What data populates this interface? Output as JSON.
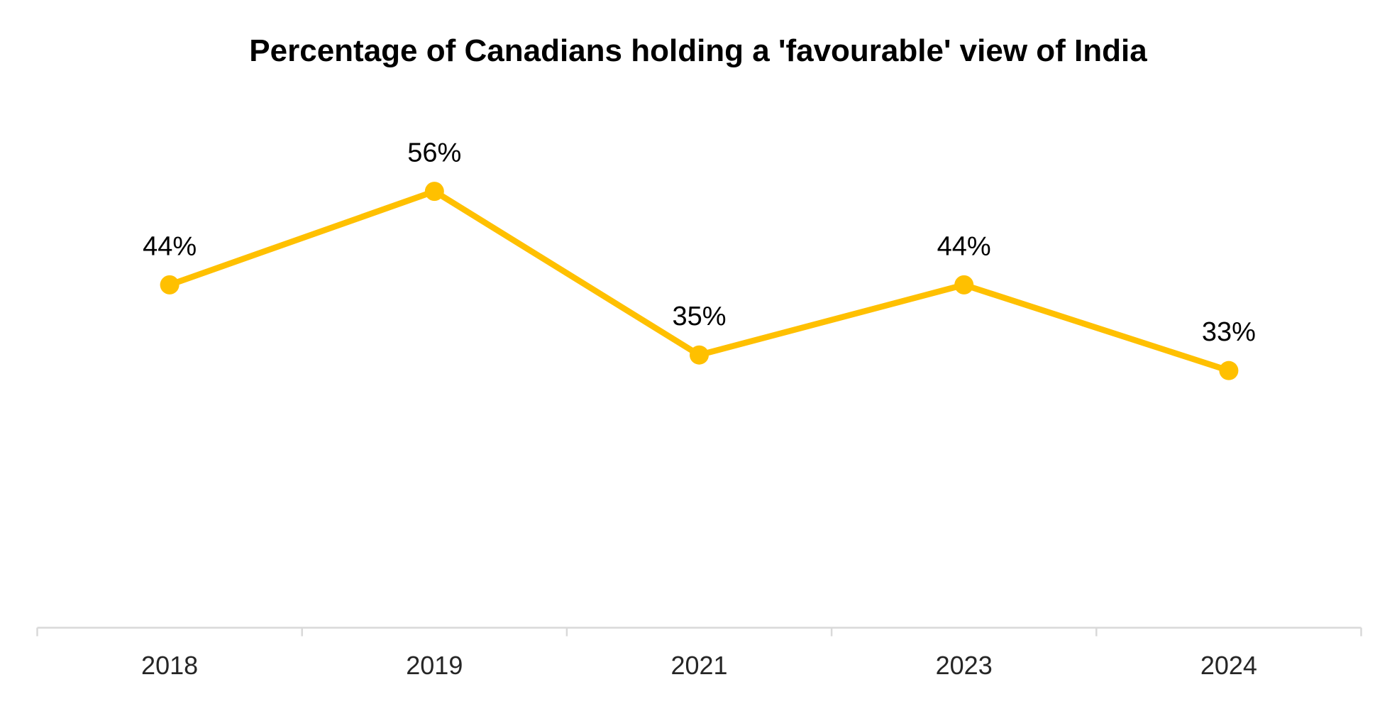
{
  "chart_data": {
    "type": "line",
    "title": "Percentage of Canadians holding a 'favourable' view of India",
    "categories": [
      "2018",
      "2019",
      "2021",
      "2023",
      "2024"
    ],
    "values": [
      44,
      56,
      35,
      44,
      33
    ],
    "data_labels": [
      "44%",
      "56%",
      "35%",
      "44%",
      "33%"
    ],
    "xlabel": "",
    "ylabel": "",
    "ylim": [
      0,
      70
    ],
    "grid": false,
    "legend": false,
    "data_label_position": "above",
    "colors": {
      "line": "#FFC000",
      "marker": "#FFC000",
      "axis_line": "#D9D9D9",
      "title_text": "#000000",
      "data_label_text": "#000000",
      "axis_label_text": "#262626",
      "background": "#FFFFFF"
    }
  }
}
